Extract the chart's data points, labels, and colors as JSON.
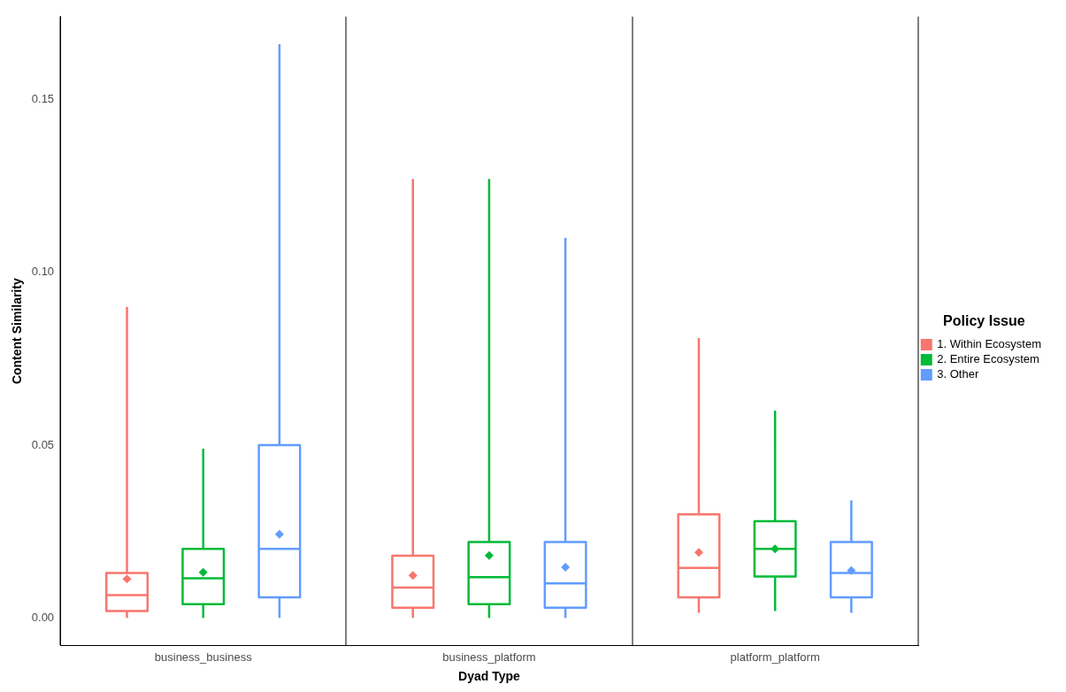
{
  "chart_data": {
    "type": "box",
    "xlabel": "Dyad Type",
    "ylabel": "Content Similarity",
    "legend_title": "Policy Issue",
    "legend": "right",
    "grid": "x",
    "categories": [
      "business_business",
      "business_platform",
      "platform_platform"
    ],
    "ylim": [
      -0.008,
      0.174
    ],
    "yticks": [
      {
        "value": 0,
        "label": "0.00"
      },
      {
        "value": 0.05,
        "label": "0.05"
      },
      {
        "value": 0.1,
        "label": "0.10"
      },
      {
        "value": 0.15,
        "label": "0.15"
      }
    ],
    "series": [
      {
        "name": "1. Within Ecosystem",
        "color": "#f8766d",
        "boxes": [
          {
            "low": 0,
            "q1": 0.002,
            "median": 0.0066,
            "q3": 0.013,
            "high": 0.09,
            "mean": 0.0113
          },
          {
            "low": 0,
            "q1": 0.003,
            "median": 0.0088,
            "q3": 0.018,
            "high": 0.127,
            "mean": 0.0123
          },
          {
            "low": 0.0015,
            "q1": 0.006,
            "median": 0.0145,
            "q3": 0.03,
            "high": 0.081,
            "mean": 0.019
          }
        ]
      },
      {
        "name": "2. Entire Ecosystem",
        "color": "#00ba38",
        "boxes": [
          {
            "low": 0,
            "q1": 0.004,
            "median": 0.0115,
            "q3": 0.02,
            "high": 0.049,
            "mean": 0.0132
          },
          {
            "low": 0,
            "q1": 0.004,
            "median": 0.0118,
            "q3": 0.022,
            "high": 0.127,
            "mean": 0.0181
          },
          {
            "low": 0.002,
            "q1": 0.012,
            "median": 0.02,
            "q3": 0.028,
            "high": 0.06,
            "mean": 0.02
          }
        ]
      },
      {
        "name": "3. Other",
        "color": "#619cff",
        "boxes": [
          {
            "low": 0,
            "q1": 0.006,
            "median": 0.02,
            "q3": 0.05,
            "high": 0.166,
            "mean": 0.0242
          },
          {
            "low": 0,
            "q1": 0.003,
            "median": 0.01,
            "q3": 0.022,
            "high": 0.11,
            "mean": 0.0147
          },
          {
            "low": 0.0015,
            "q1": 0.006,
            "median": 0.013,
            "q3": 0.022,
            "high": 0.034,
            "mean": 0.0137
          }
        ]
      }
    ]
  }
}
